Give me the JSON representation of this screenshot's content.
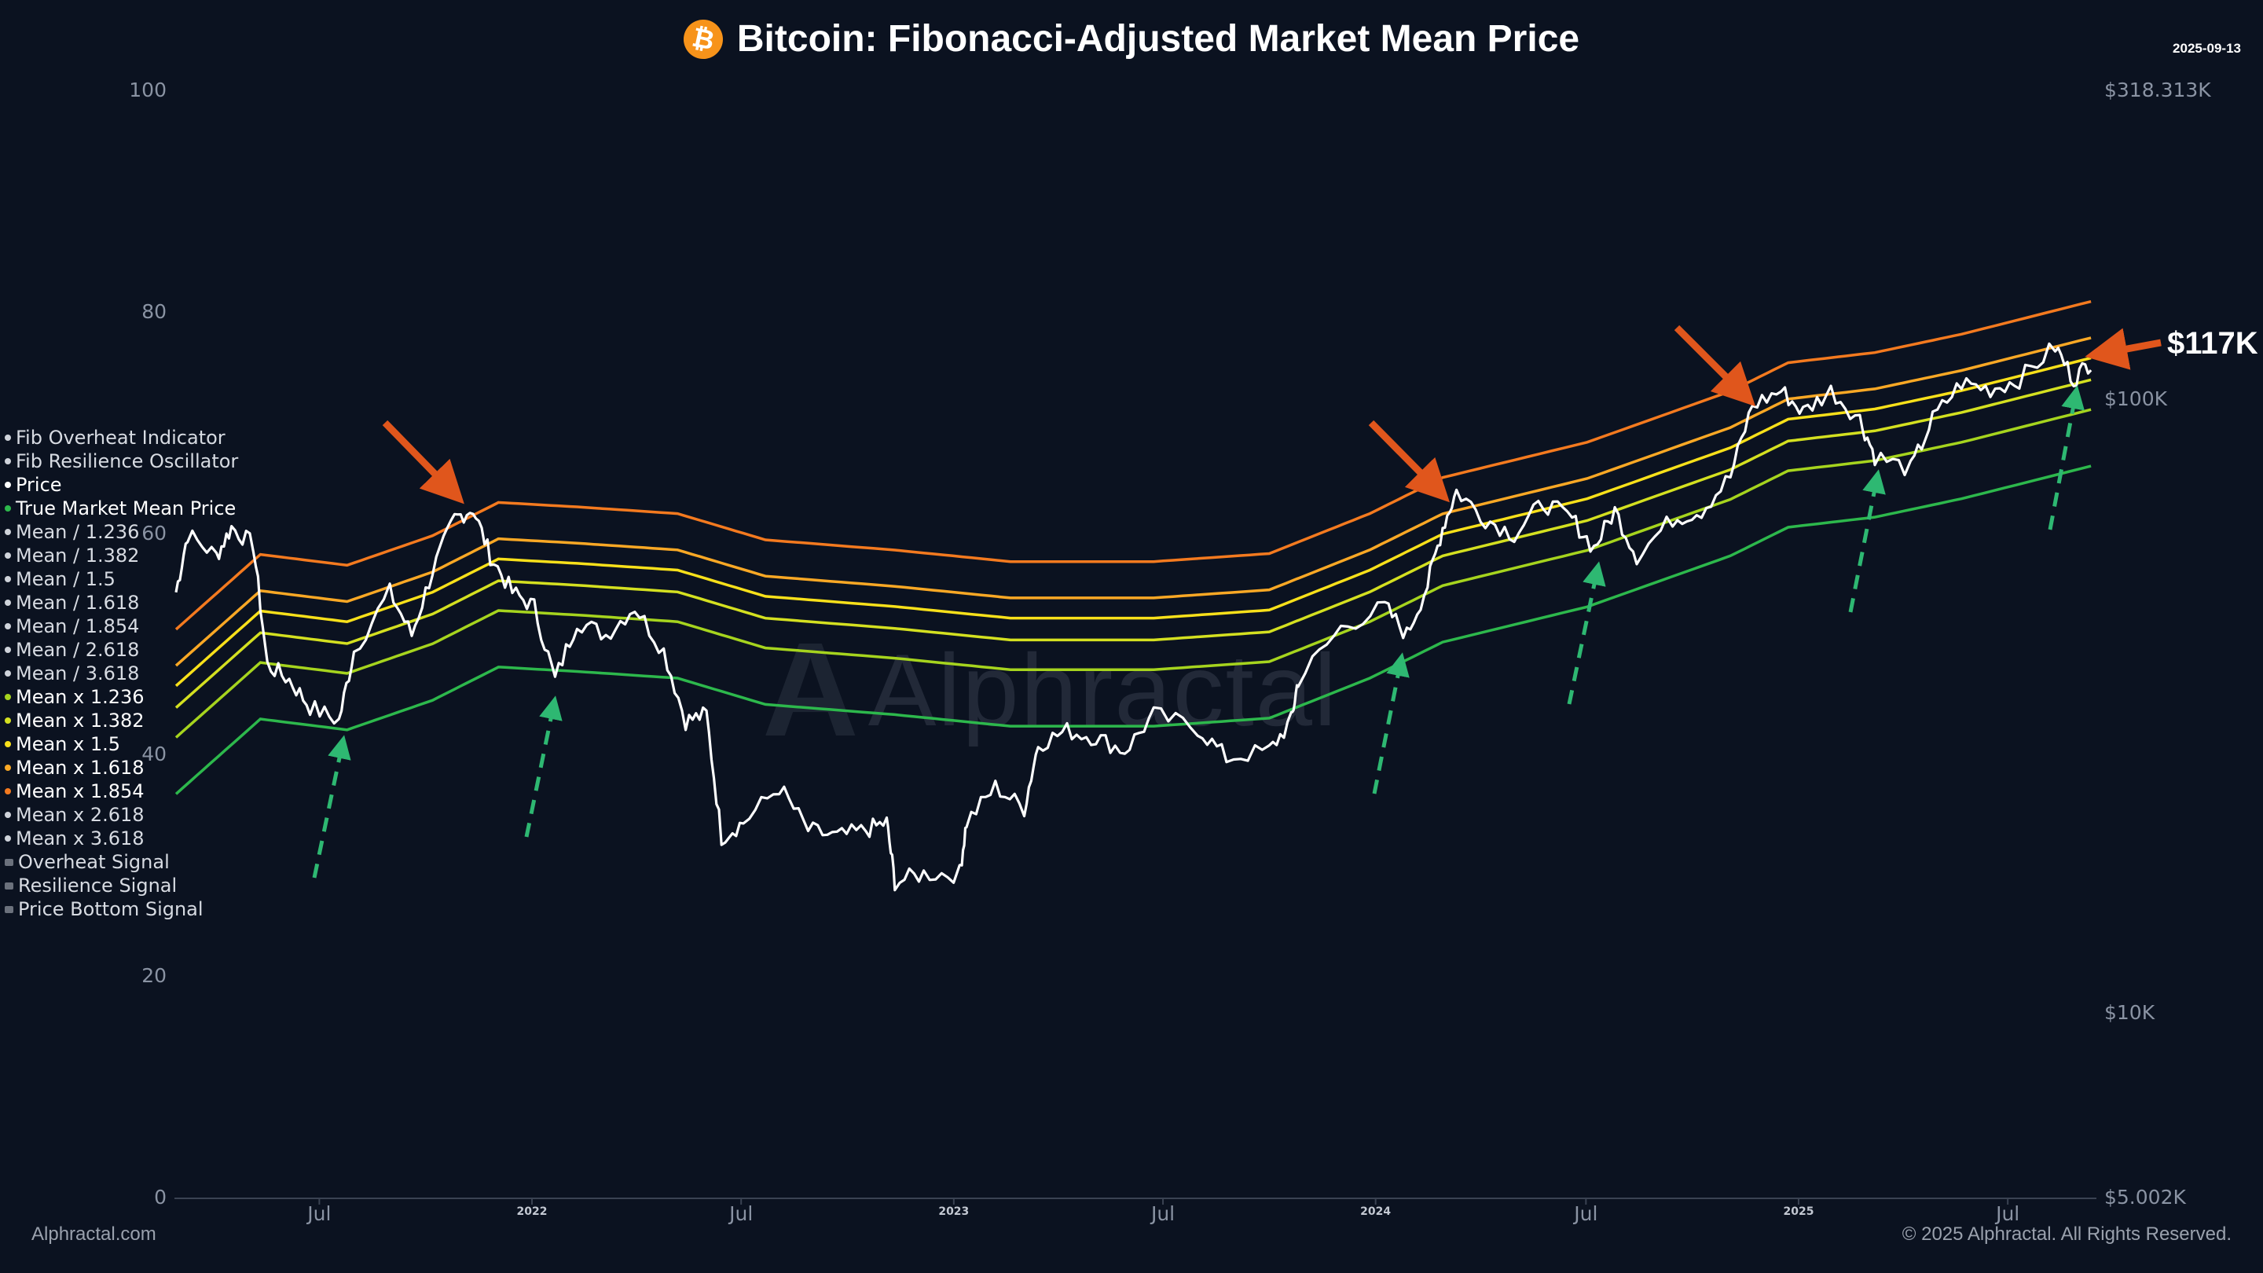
{
  "header": {
    "title": "Bitcoin: Fibonacci-Adjusted Market Mean Price",
    "logo_icon": "bitcoin-icon",
    "date": "2025-09-13"
  },
  "watermark": "Alphractal",
  "footer": {
    "left": "Alphractal.com",
    "right": "© 2025 Alphractal. All Rights Reserved."
  },
  "annotation": {
    "callout": "$117K",
    "arrow_color": "#e0561c",
    "support_arrow_color": "#2eb872"
  },
  "legend": [
    {
      "label": "Fib Overheat Indicator",
      "color": "#cfd3da",
      "shape": "dot"
    },
    {
      "label": "Fib Resilience Oscillator",
      "color": "#cfd3da",
      "shape": "dot"
    },
    {
      "label": "Price",
      "color": "#ffffff",
      "shape": "dot"
    },
    {
      "label": "True Market Mean Price",
      "color": "#2db84c",
      "shape": "dot"
    },
    {
      "label": "Mean / 1.236",
      "color": "#cfd3da",
      "shape": "dot"
    },
    {
      "label": "Mean / 1.382",
      "color": "#cfd3da",
      "shape": "dot"
    },
    {
      "label": "Mean / 1.5",
      "color": "#cfd3da",
      "shape": "dot"
    },
    {
      "label": "Mean / 1.618",
      "color": "#cfd3da",
      "shape": "dot"
    },
    {
      "label": "Mean / 1.854",
      "color": "#cfd3da",
      "shape": "dot"
    },
    {
      "label": "Mean / 2.618",
      "color": "#cfd3da",
      "shape": "dot"
    },
    {
      "label": "Mean / 3.618",
      "color": "#cfd3da",
      "shape": "dot"
    },
    {
      "label": "Mean x 1.236",
      "color": "#a6d41e",
      "shape": "dot"
    },
    {
      "label": "Mean x 1.382",
      "color": "#d4e020",
      "shape": "dot"
    },
    {
      "label": "Mean x 1.5",
      "color": "#f8e01a",
      "shape": "dot"
    },
    {
      "label": "Mean x 1.618",
      "color": "#f9a825",
      "shape": "dot"
    },
    {
      "label": "Mean x 1.854",
      "color": "#f47a1f",
      "shape": "dot"
    },
    {
      "label": "Mean x 2.618",
      "color": "#cfd3da",
      "shape": "dot"
    },
    {
      "label": "Mean x 3.618",
      "color": "#cfd3da",
      "shape": "dot"
    },
    {
      "label": "Overheat Signal",
      "color": "#6b717c",
      "shape": "square"
    },
    {
      "label": "Resilience Signal",
      "color": "#6b717c",
      "shape": "square"
    },
    {
      "label": "Price Bottom Signal",
      "color": "#6b717c",
      "shape": "square"
    }
  ],
  "chart_data": {
    "type": "line",
    "title": "Bitcoin: Fibonacci-Adjusted Market Mean Price",
    "x_range": [
      "2021-02-27",
      "2025-09-13"
    ],
    "x_ticks": [
      {
        "date": "2021-07-01",
        "label": "Jul",
        "kind": "month"
      },
      {
        "date": "2022-01-01",
        "label": "2022",
        "kind": "year"
      },
      {
        "date": "2022-07-01",
        "label": "Jul",
        "kind": "month"
      },
      {
        "date": "2023-01-01",
        "label": "2023",
        "kind": "year"
      },
      {
        "date": "2023-07-01",
        "label": "Jul",
        "kind": "month"
      },
      {
        "date": "2024-01-01",
        "label": "2024",
        "kind": "year"
      },
      {
        "date": "2024-07-01",
        "label": "Jul",
        "kind": "month"
      },
      {
        "date": "2025-01-01",
        "label": "2025",
        "kind": "year"
      },
      {
        "date": "2025-07-01",
        "label": "Jul",
        "kind": "month"
      }
    ],
    "y_left": {
      "range": [
        0,
        100
      ],
      "ticks": [
        "0",
        "20",
        "40",
        "60",
        "80",
        "100"
      ]
    },
    "y_right": {
      "scale": "log",
      "range_usd_k": [
        5.002,
        318.313
      ],
      "ticks": [
        {
          "value": 318.313,
          "label": "$318.313K"
        },
        {
          "value": 100,
          "label": "$100K"
        },
        {
          "value": 10,
          "label": "$10K"
        },
        {
          "value": 5.002,
          "label": "$5.002K"
        }
      ]
    },
    "grid": false,
    "legend_position": "left",
    "units": "USD thousands",
    "price": {
      "name": "Price",
      "color": "#ffffff",
      "points": [
        [
          "2021-02-27",
          48.6
        ],
        [
          "2021-03-09",
          60.4
        ],
        [
          "2021-04-03",
          55.7
        ],
        [
          "2021-04-16",
          62
        ],
        [
          "2021-05-05",
          58
        ],
        [
          "2021-05-17",
          37
        ],
        [
          "2021-06-05",
          35
        ],
        [
          "2021-06-23",
          31.6
        ],
        [
          "2021-07-18",
          30
        ],
        [
          "2021-07-31",
          39
        ],
        [
          "2021-08-31",
          48.6
        ],
        [
          "2021-09-19",
          41.4
        ],
        [
          "2021-10-07",
          52.7
        ],
        [
          "2021-10-26",
          64
        ],
        [
          "2021-11-11",
          66.5
        ],
        [
          "2021-11-26",
          55.7
        ],
        [
          "2021-12-15",
          48.6
        ],
        [
          "2022-01-03",
          46
        ],
        [
          "2022-01-21",
          35
        ],
        [
          "2022-02-09",
          43.6
        ],
        [
          "2022-03-06",
          41.4
        ],
        [
          "2022-03-31",
          46
        ],
        [
          "2022-04-25",
          39
        ],
        [
          "2022-05-14",
          30
        ],
        [
          "2022-06-01",
          30.7
        ],
        [
          "2022-06-14",
          19.4
        ],
        [
          "2022-07-03",
          20.5
        ],
        [
          "2022-08-03",
          23.4
        ],
        [
          "2022-08-28",
          19.9
        ],
        [
          "2022-09-22",
          19.4
        ],
        [
          "2022-10-17",
          19.9
        ],
        [
          "2022-11-04",
          20.5
        ],
        [
          "2022-11-11",
          16.4
        ],
        [
          "2022-12-06",
          16.9
        ],
        [
          "2023-01-06",
          16.9
        ],
        [
          "2023-01-12",
          20.5
        ],
        [
          "2023-02-06",
          23.4
        ],
        [
          "2023-03-03",
          21.6
        ],
        [
          "2023-03-15",
          27.5
        ],
        [
          "2023-04-09",
          28.9
        ],
        [
          "2023-05-04",
          28.2
        ],
        [
          "2023-05-29",
          26.8
        ],
        [
          "2023-06-23",
          30.7
        ],
        [
          "2023-07-31",
          29.2
        ],
        [
          "2023-08-25",
          26.1
        ],
        [
          "2023-10-01",
          26.8
        ],
        [
          "2023-10-20",
          30
        ],
        [
          "2023-10-26",
          35
        ],
        [
          "2023-12-02",
          42.5
        ],
        [
          "2024-01-09",
          46
        ],
        [
          "2024-01-28",
          41.4
        ],
        [
          "2024-02-15",
          50
        ],
        [
          "2024-02-28",
          62
        ],
        [
          "2024-03-11",
          71
        ],
        [
          "2024-04-05",
          64
        ],
        [
          "2024-04-30",
          60.4
        ],
        [
          "2024-05-25",
          68
        ],
        [
          "2024-06-19",
          64
        ],
        [
          "2024-07-08",
          57.3
        ],
        [
          "2024-07-26",
          66
        ],
        [
          "2024-08-14",
          55.7
        ],
        [
          "2024-09-14",
          64
        ],
        [
          "2024-10-09",
          66
        ],
        [
          "2024-11-03",
          75
        ],
        [
          "2024-11-22",
          98
        ],
        [
          "2024-12-17",
          103.5
        ],
        [
          "2025-01-05",
          95.5
        ],
        [
          "2025-01-29",
          103.5
        ],
        [
          "2025-02-23",
          93
        ],
        [
          "2025-03-08",
          81
        ],
        [
          "2025-04-08",
          77
        ],
        [
          "2025-04-27",
          93
        ],
        [
          "2025-05-22",
          106.6
        ],
        [
          "2025-06-16",
          104
        ],
        [
          "2025-07-11",
          108
        ],
        [
          "2025-08-11",
          122.1
        ],
        [
          "2025-08-27",
          108
        ],
        [
          "2025-09-11",
          115.6
        ]
      ]
    },
    "true_market_mean": {
      "name": "True Market Mean Price",
      "color": "#2db84c",
      "points": [
        [
          "2021-02-27",
          22.8
        ],
        [
          "2021-05-11",
          30.2
        ],
        [
          "2021-07-25",
          29
        ],
        [
          "2021-10-07",
          32.4
        ],
        [
          "2021-12-03",
          36.7
        ],
        [
          "2022-02-09",
          36.1
        ],
        [
          "2022-05-07",
          35.2
        ],
        [
          "2022-07-22",
          31.9
        ],
        [
          "2022-11-11",
          30.7
        ],
        [
          "2023-02-19",
          29.4
        ],
        [
          "2023-06-23",
          29.4
        ],
        [
          "2023-10-01",
          30.3
        ],
        [
          "2023-12-27",
          35.2
        ],
        [
          "2024-02-28",
          40.3
        ],
        [
          "2024-07-02",
          46
        ],
        [
          "2024-11-03",
          55.7
        ],
        [
          "2024-12-23",
          62
        ],
        [
          "2025-03-08",
          64.4
        ],
        [
          "2025-05-22",
          69
        ],
        [
          "2025-09-11",
          78
        ]
      ]
    },
    "bands": [
      {
        "name": "Mean x 1.236",
        "multiplier": 1.236,
        "color": "#a6d41e"
      },
      {
        "name": "Mean x 1.382",
        "multiplier": 1.382,
        "color": "#d4e020"
      },
      {
        "name": "Mean x 1.5",
        "multiplier": 1.5,
        "color": "#f8e01a"
      },
      {
        "name": "Mean x 1.618",
        "multiplier": 1.618,
        "color": "#f9a825"
      },
      {
        "name": "Mean x 1.854",
        "multiplier": 1.854,
        "color": "#f47a1f"
      }
    ]
  }
}
